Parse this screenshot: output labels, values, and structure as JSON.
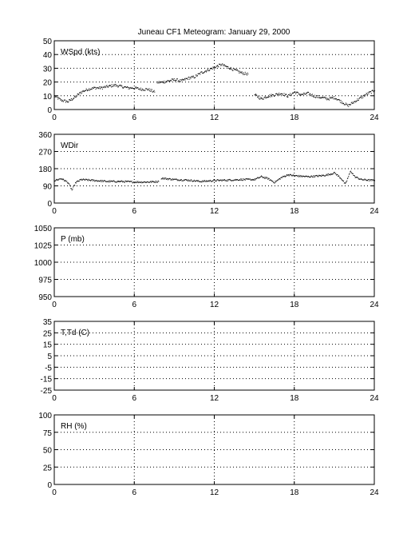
{
  "title": "Juneau CF1 Meteogram:   January 29, 2000",
  "chart_data": [
    {
      "type": "scatter",
      "label": "WSpd (kts)",
      "ylim": [
        0,
        50
      ],
      "yticks": [
        0,
        10,
        20,
        30,
        40,
        50
      ],
      "xlim": [
        0,
        24
      ],
      "xticks": [
        0,
        6,
        12,
        18,
        24
      ],
      "grid": true,
      "segments": [
        {
          "x": [
            0,
            0.5,
            1,
            1.5,
            2,
            2.5,
            3,
            3.5,
            4,
            4.5,
            5,
            5.5,
            6,
            6.5,
            7,
            7.5
          ],
          "y": [
            10,
            7,
            6,
            9,
            13,
            15,
            16,
            16,
            17,
            18,
            17,
            16,
            16,
            15,
            15,
            13
          ]
        },
        {
          "x": [
            7.7,
            8,
            8.5,
            9,
            9.5,
            10,
            10.5,
            11,
            11.5,
            12,
            12.5,
            13,
            13.5,
            14,
            14.5
          ],
          "y": [
            20,
            20,
            21,
            22,
            21,
            23,
            24,
            27,
            29,
            31,
            33,
            31,
            29,
            27,
            26
          ]
        },
        {
          "x": [
            15,
            15.5,
            16,
            16.5,
            17,
            17.5,
            18,
            18.5,
            19,
            19.5,
            20,
            20.5,
            21,
            21.5,
            22,
            22.5,
            23,
            23.5,
            24
          ],
          "y": [
            11,
            8,
            10,
            11,
            12,
            10,
            13,
            11,
            12,
            10,
            9,
            8,
            9,
            6,
            3,
            6,
            9,
            12,
            14
          ]
        }
      ]
    },
    {
      "type": "scatter",
      "label": "WDir",
      "ylim": [
        0,
        360
      ],
      "yticks": [
        0,
        90,
        180,
        270,
        360
      ],
      "xlim": [
        0,
        24
      ],
      "xticks": [
        0,
        6,
        12,
        18,
        24
      ],
      "grid": true,
      "segments": [
        {
          "x": [
            0,
            0.5,
            1,
            1.3,
            1.6,
            2,
            3,
            4,
            5,
            6,
            7,
            7.8
          ],
          "y": [
            120,
            130,
            110,
            70,
            110,
            125,
            120,
            115,
            115,
            112,
            112,
            115
          ]
        },
        {
          "x": [
            8,
            9,
            10,
            11,
            12,
            13,
            14,
            15,
            15.5,
            16,
            16.5,
            17,
            17.5,
            18,
            19,
            20,
            20.5,
            21,
            21.5,
            21.8,
            22.2,
            22.5,
            23,
            24
          ],
          "y": [
            132,
            125,
            122,
            115,
            120,
            122,
            125,
            125,
            140,
            130,
            110,
            135,
            150,
            145,
            140,
            145,
            150,
            160,
            130,
            100,
            170,
            140,
            125,
            120
          ]
        }
      ]
    },
    {
      "type": "scatter",
      "label": "P (mb)",
      "ylim": [
        950,
        1050
      ],
      "yticks": [
        950,
        975,
        1000,
        1025,
        1050
      ],
      "xlim": [
        0,
        24
      ],
      "xticks": [
        0,
        6,
        12,
        18,
        24
      ],
      "grid": true,
      "segments": []
    },
    {
      "type": "scatter",
      "label": "T,Td (C)",
      "ylim": [
        -25,
        35
      ],
      "yticks": [
        -25,
        -15,
        -5,
        5,
        15,
        25,
        35
      ],
      "xlim": [
        0,
        24
      ],
      "xticks": [
        0,
        6,
        12,
        18,
        24
      ],
      "grid": true,
      "segments": []
    },
    {
      "type": "scatter",
      "label": "RH (%)",
      "ylim": [
        0,
        100
      ],
      "yticks": [
        0,
        25,
        50,
        75,
        100
      ],
      "xlim": [
        0,
        24
      ],
      "xticks": [
        0,
        6,
        12,
        18,
        24
      ],
      "grid": true,
      "segments": []
    }
  ]
}
